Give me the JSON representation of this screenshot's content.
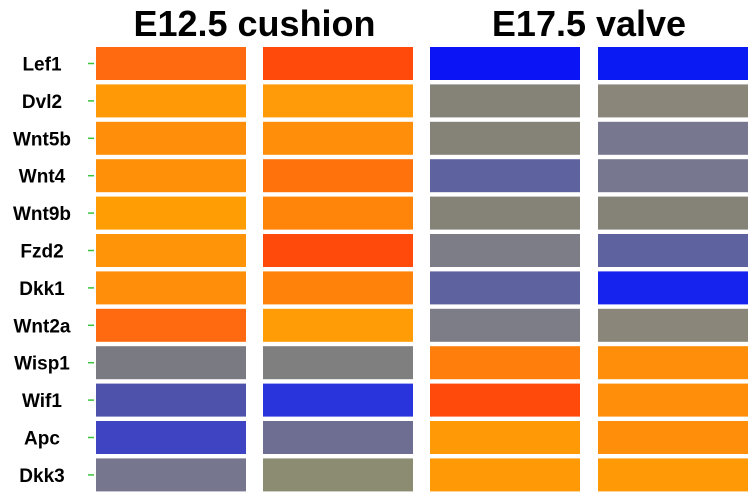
{
  "chart_data": {
    "type": "heatmap",
    "groups": [
      {
        "title": "E12.5 cushion",
        "columns": [
          0,
          1
        ]
      },
      {
        "title": "E17.5 valve",
        "columns": [
          2,
          3
        ]
      }
    ],
    "rows": [
      "Lef1",
      "Dvl2",
      "Wnt5b",
      "Wnt4",
      "Wnt9b",
      "Fzd2",
      "Dkk1",
      "Wnt2a",
      "Wisp1",
      "Wif1",
      "Apc",
      "Dkk3"
    ],
    "cell_colors": [
      [
        "#FF6A10",
        "#FF4A0C",
        "#0A14F4",
        "#0A1AF2"
      ],
      [
        "#FF9A06",
        "#FF9A08",
        "#858278",
        "#8A877A"
      ],
      [
        "#FF8E0A",
        "#FF8E0A",
        "#858278",
        "#777890"
      ],
      [
        "#FF9008",
        "#FF720C",
        "#5E629E",
        "#777890"
      ],
      [
        "#FF9E04",
        "#FF840A",
        "#858278",
        "#858278"
      ],
      [
        "#FF9408",
        "#FF4A0C",
        "#7C7D86",
        "#5E629E"
      ],
      [
        "#FF8E0A",
        "#FF820A",
        "#5E629E",
        "#1622EE"
      ],
      [
        "#FF6A10",
        "#FF9C06",
        "#7C7D86",
        "#8A877A"
      ],
      [
        "#7A7A82",
        "#7F7F7F",
        "#FF7E0C",
        "#FF8E0A"
      ],
      [
        "#4E52AA",
        "#2A34DC",
        "#FF4A0C",
        "#FF8E0A"
      ],
      [
        "#3E44C2",
        "#6E6E92",
        "#FF9A06",
        "#FF8E0A"
      ],
      [
        "#76768E",
        "#8C8C72",
        "#FF9A06",
        "#FF9A06"
      ]
    ],
    "color_scale": {
      "high": "#FF4A0C",
      "mid": "#858278",
      "low": "#0A14F4"
    }
  }
}
